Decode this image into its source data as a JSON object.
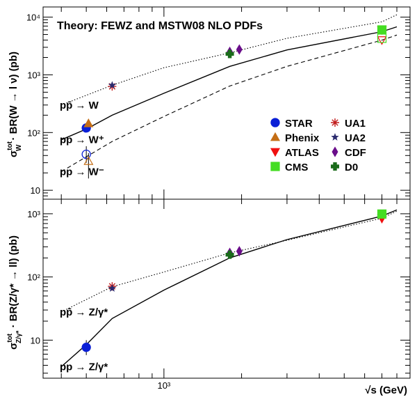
{
  "chart_data": [
    {
      "type": "scatter",
      "title": "Theory: FEWZ and MSTW08 NLO PDFs",
      "ylabel": "σ_W^tot · BR(W → l ν) (pb)",
      "xscale": "log",
      "yscale": "log",
      "xlim": [
        340,
        9000
      ],
      "ylim": [
        7,
        15000
      ],
      "y_ticks": [
        {
          "value": 10,
          "label": "10"
        },
        {
          "value": 100,
          "label": "10²"
        },
        {
          "value": 1000,
          "label": "10³"
        },
        {
          "value": 10000,
          "label": "10⁴"
        }
      ],
      "legend_placement": "center-right",
      "legend": [
        {
          "name": "STAR",
          "marker": "circle",
          "color": "#0a1fd6"
        },
        {
          "name": "UA1",
          "marker": "asterisk",
          "color": "#c21d1d"
        },
        {
          "name": "Phenix",
          "marker": "triangle-up",
          "color": "#c46e16"
        },
        {
          "name": "UA2",
          "marker": "star",
          "color": "#2a2a6e"
        },
        {
          "name": "ATLAS",
          "marker": "triangle-down",
          "color": "#f01010"
        },
        {
          "name": "CDF",
          "marker": "diamond",
          "color": "#6a0d8a"
        },
        {
          "name": "CMS",
          "marker": "square",
          "color": "#44dd22"
        },
        {
          "name": "D0",
          "marker": "cross",
          "color": "#1b6b1b"
        }
      ],
      "curves": [
        {
          "label": "pp̄ → W",
          "style": "dotted",
          "points": [
            [
              400,
              300
            ],
            [
              630,
              660
            ],
            [
              1000,
              1330
            ],
            [
              1800,
              2400
            ],
            [
              3000,
              4300
            ],
            [
              7000,
              8300
            ],
            [
              8000,
              11000
            ]
          ]
        },
        {
          "label": "pp → W⁺",
          "style": "solid",
          "points": [
            [
              400,
              75
            ],
            [
              500,
              115
            ],
            [
              630,
              200
            ],
            [
              1000,
              480
            ],
            [
              1800,
              1400
            ],
            [
              3000,
              2700
            ],
            [
              7000,
              5600
            ],
            [
              8000,
              6800
            ]
          ]
        },
        {
          "label": "pp → W⁻",
          "style": "dashed",
          "points": [
            [
              400,
              21
            ],
            [
              500,
              38
            ],
            [
              630,
              70
            ],
            [
              1000,
              190
            ],
            [
              1800,
              640
            ],
            [
              3000,
              1400
            ],
            [
              7000,
              4000
            ],
            [
              8000,
              4900
            ]
          ]
        }
      ],
      "points": [
        {
          "experiment": "STAR",
          "x": 500,
          "y": 120,
          "marker": "circle",
          "filled": true,
          "color": "#0a1fd6"
        },
        {
          "experiment": "STAR",
          "x": 500,
          "y": 42,
          "marker": "circle",
          "filled": false,
          "color": "#0a1fd6",
          "yerr": [
            30,
            58
          ]
        },
        {
          "experiment": "Phenix",
          "x": 510,
          "y": 144,
          "marker": "triangle-up",
          "filled": true,
          "color": "#c46e16"
        },
        {
          "experiment": "Phenix",
          "x": 510,
          "y": 32,
          "marker": "triangle-up",
          "filled": false,
          "color": "#c46e16",
          "yerr": [
            16,
            44
          ]
        },
        {
          "experiment": "UA1",
          "x": 630,
          "y": 630,
          "marker": "asterisk",
          "color": "#c21d1d"
        },
        {
          "experiment": "UA2",
          "x": 630,
          "y": 660,
          "marker": "star",
          "color": "#2a2a6e"
        },
        {
          "experiment": "CDF",
          "x": 1800,
          "y": 2500,
          "marker": "diamond",
          "color": "#6a0d8a"
        },
        {
          "experiment": "D0",
          "x": 1800,
          "y": 2300,
          "marker": "cross",
          "color": "#1b6b1b"
        },
        {
          "experiment": "CDF",
          "x": 1960,
          "y": 2750,
          "marker": "diamond",
          "color": "#6a0d8a"
        },
        {
          "experiment": "ATLAS",
          "x": 7000,
          "y": 6000,
          "marker": "triangle-down",
          "filled": true,
          "color": "#f01010"
        },
        {
          "experiment": "ATLAS",
          "x": 7000,
          "y": 4000,
          "marker": "triangle-down",
          "filled": false,
          "color": "#f01010"
        },
        {
          "experiment": "CMS",
          "x": 7000,
          "y": 6000,
          "marker": "square",
          "filled": true,
          "color": "#44dd22"
        },
        {
          "experiment": "CMS",
          "x": 7000,
          "y": 4300,
          "marker": "square",
          "filled": false,
          "color": "#44dd22"
        }
      ]
    },
    {
      "type": "scatter",
      "ylabel": "σ_Z/γ*^tot · BR(Z/γ* → ll) (pb)",
      "xlabel": "√s  (GeV)",
      "xscale": "log",
      "yscale": "log",
      "xlim": [
        340,
        9000
      ],
      "ylim": [
        2.5,
        1700
      ],
      "x_ticks": [
        {
          "value": 1000,
          "label": "10³"
        }
      ],
      "y_ticks": [
        {
          "value": 10,
          "label": "10"
        },
        {
          "value": 100,
          "label": "10²"
        },
        {
          "value": 1000,
          "label": "10³"
        }
      ],
      "curves": [
        {
          "label": "pp̄ → Z/γ*",
          "style": "dotted",
          "points": [
            [
              400,
              28
            ],
            [
              630,
              70
            ],
            [
              1000,
              120
            ],
            [
              1800,
              240
            ],
            [
              3000,
              380
            ],
            [
              7000,
              850
            ],
            [
              8000,
              1100
            ]
          ]
        },
        {
          "label": "pp → Z/γ*",
          "style": "solid",
          "points": [
            [
              400,
              3.8
            ],
            [
              500,
              8.5
            ],
            [
              630,
              22
            ],
            [
              1000,
              62
            ],
            [
              1800,
              200
            ],
            [
              3000,
              390
            ],
            [
              7000,
              920
            ],
            [
              8000,
              1150
            ]
          ]
        }
      ],
      "points": [
        {
          "experiment": "STAR",
          "x": 500,
          "y": 7.7,
          "marker": "circle",
          "filled": true,
          "color": "#0a1fd6",
          "yerr": [
            5.8,
            10
          ]
        },
        {
          "experiment": "UA1",
          "x": 630,
          "y": 71,
          "marker": "asterisk",
          "color": "#c21d1d"
        },
        {
          "experiment": "UA2",
          "x": 630,
          "y": 66,
          "marker": "star",
          "color": "#2a2a6e"
        },
        {
          "experiment": "CDF",
          "x": 1800,
          "y": 240,
          "marker": "diamond",
          "color": "#6a0d8a"
        },
        {
          "experiment": "D0",
          "x": 1800,
          "y": 225,
          "marker": "cross",
          "color": "#1b6b1b"
        },
        {
          "experiment": "CDF",
          "x": 1960,
          "y": 255,
          "marker": "diamond",
          "color": "#6a0d8a"
        },
        {
          "experiment": "ATLAS",
          "x": 7000,
          "y": 840,
          "marker": "triangle-down",
          "filled": true,
          "color": "#f01010"
        },
        {
          "experiment": "CMS",
          "x": 7000,
          "y": 990,
          "marker": "square",
          "filled": true,
          "color": "#44dd22"
        }
      ]
    }
  ]
}
